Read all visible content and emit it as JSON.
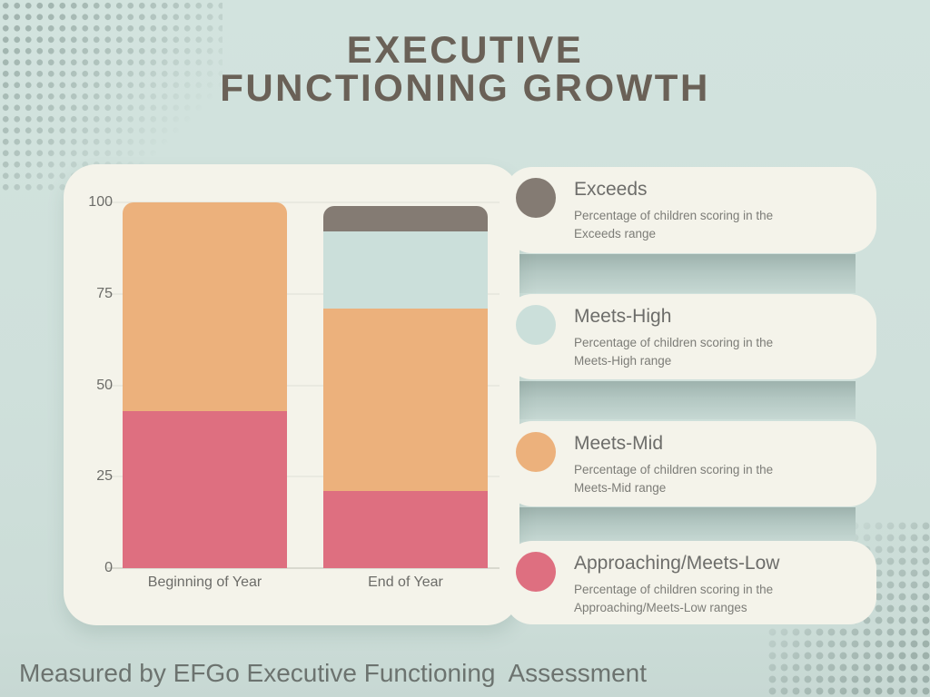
{
  "page": {
    "background_color": "#cfe0db",
    "title_line1": "EXECUTIVE",
    "title_line2": "FUNCTIONING GROWTH",
    "title_color": "#6a6157",
    "footer": "Measured by EFGo Executive Functioning  Assessment"
  },
  "chart_data": {
    "type": "bar",
    "stacked": true,
    "title": "Executive Functioning Growth",
    "categories": [
      "Beginning of Year",
      "End of Year"
    ],
    "series": [
      {
        "name": "Approaching/Meets-Low",
        "color": "#de6f80",
        "values": [
          43,
          21
        ]
      },
      {
        "name": "Meets-Mid",
        "color": "#ecb17c",
        "values": [
          57,
          50
        ]
      },
      {
        "name": "Meets-High",
        "color": "#cbdfda",
        "values": [
          0,
          21
        ]
      },
      {
        "name": "Exceeds",
        "color": "#847b73",
        "values": [
          0,
          7
        ]
      }
    ],
    "ylim": [
      0,
      100
    ],
    "yticks": [
      0,
      25,
      50,
      75,
      100
    ],
    "grid": true,
    "legend_position": "right"
  },
  "legend": {
    "items": [
      {
        "title": "Exceeds",
        "description": "Percentage of children scoring in the\nExceeds range",
        "color": "#847b73"
      },
      {
        "title": "Meets-High",
        "description": "Percentage of children scoring in the\nMeets-High range",
        "color": "#cbdfda"
      },
      {
        "title": "Meets-Mid",
        "description": "Percentage of children scoring in the\nMeets-Mid range",
        "color": "#ecb17c"
      },
      {
        "title": "Approaching/Meets-Low",
        "description": "Percentage of children scoring in the\nApproaching/Meets-Low ranges",
        "color": "#de6f80"
      }
    ]
  }
}
